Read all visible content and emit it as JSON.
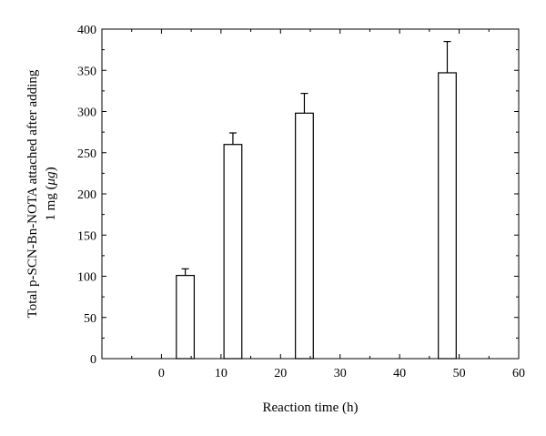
{
  "chart_data": {
    "type": "bar",
    "xlabel": "Reaction time (h)",
    "ylabel_line1": "Total p-SCN-Bn-NOTA attached after adding",
    "ylabel_line2_prefix": "1 mg (",
    "ylabel_line2_unit": "μg",
    "ylabel_line2_suffix": ")",
    "xlim": [
      -10,
      60
    ],
    "ylim": [
      0,
      400
    ],
    "x_ticks": [
      0,
      10,
      20,
      30,
      40,
      50,
      60
    ],
    "y_ticks": [
      0,
      50,
      100,
      150,
      200,
      250,
      300,
      350,
      400
    ],
    "bar_width": 3,
    "points": [
      {
        "x": 4,
        "value": 101,
        "error": 8
      },
      {
        "x": 12,
        "value": 260,
        "error": 14
      },
      {
        "x": 24,
        "value": 298,
        "error": 24
      },
      {
        "x": 48,
        "value": 347,
        "error": 38
      }
    ],
    "grid": false,
    "legend": "none"
  }
}
